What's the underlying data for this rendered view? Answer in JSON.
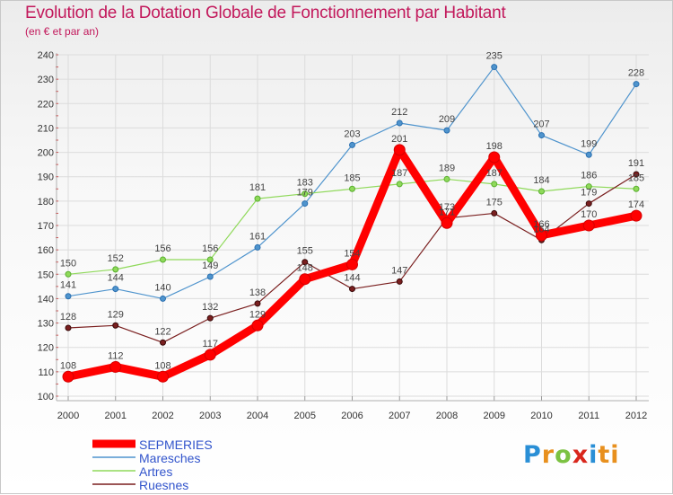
{
  "header": {
    "title": "Evolution de la Dotation Globale de Fonctionnement par Habitant",
    "subtitle": "(en € et par an)"
  },
  "logo": {
    "text": "Proxiti",
    "letters": [
      "P",
      "r",
      "o",
      "x",
      "i",
      "ti"
    ]
  },
  "chart_data": {
    "type": "line",
    "title": "Evolution de la Dotation Globale de Fonctionnement par Habitant",
    "subtitle": "(en € et par an)",
    "xlabel": "",
    "ylabel": "",
    "ylim": [
      100,
      240
    ],
    "yticks": [
      100,
      110,
      120,
      130,
      140,
      150,
      160,
      170,
      180,
      190,
      200,
      210,
      220,
      230,
      240
    ],
    "grid": true,
    "legend_position": "bottom-left",
    "categories": [
      "2000",
      "2001",
      "2002",
      "2003",
      "2004",
      "2005",
      "2006",
      "2007",
      "2008",
      "2009",
      "2010",
      "2011",
      "2012"
    ],
    "series": [
      {
        "name": "SEPMERIES",
        "color": "#ff0000",
        "values": [
          108,
          112,
          108,
          117,
          129,
          148,
          154,
          201,
          171,
          198,
          166,
          170,
          174
        ]
      },
      {
        "name": "Maresches",
        "color": "#4f94cd",
        "values": [
          141,
          144,
          140,
          149,
          161,
          179,
          203,
          212,
          209,
          235,
          207,
          199,
          228
        ]
      },
      {
        "name": "Artres",
        "color": "#8fd95a",
        "values": [
          150,
          152,
          156,
          156,
          181,
          183,
          185,
          187,
          189,
          187,
          184,
          186,
          185
        ]
      },
      {
        "name": "Ruesnes",
        "color": "#7a1f1f",
        "values": [
          128,
          129,
          122,
          132,
          138,
          155,
          144,
          147,
          173,
          175,
          164,
          179,
          191
        ]
      }
    ]
  }
}
